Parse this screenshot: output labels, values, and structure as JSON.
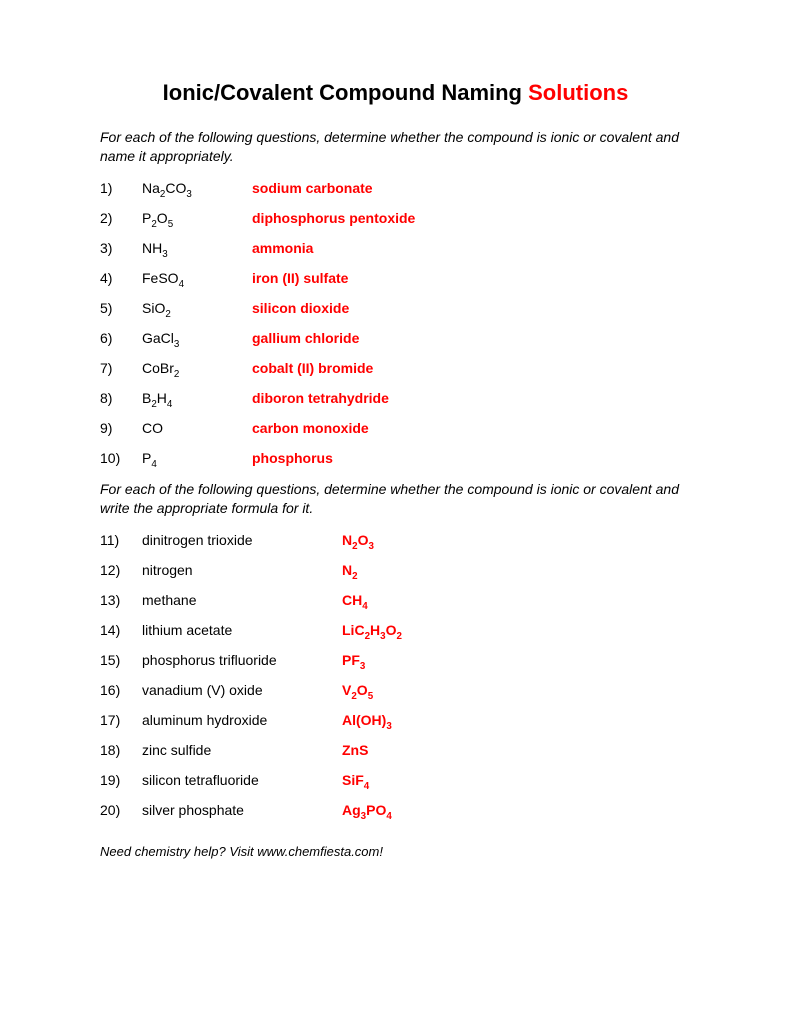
{
  "title_prefix": "Ionic/Covalent Compound Naming ",
  "title_solution_word": "Solutions",
  "instructions1": "For each of the following questions, determine whether the compound is ionic or covalent and name it appropriately.",
  "instructions2": "For each of the following questions, determine whether the compound is ionic or covalent and write the appropriate formula for it.",
  "section1": [
    {
      "n": "1)",
      "formula": "Na<sub>2</sub>CO<sub>3</sub>",
      "name": "sodium carbonate"
    },
    {
      "n": "2)",
      "formula": "P<sub>2</sub>O<sub>5</sub>",
      "name": "diphosphorus pentoxide"
    },
    {
      "n": "3)",
      "formula": "NH<sub>3</sub>",
      "name": "ammonia"
    },
    {
      "n": "4)",
      "formula": "FeSO<sub>4</sub>",
      "name": "iron (II) sulfate"
    },
    {
      "n": "5)",
      "formula": "SiO<sub>2</sub>",
      "name": "silicon dioxide"
    },
    {
      "n": "6)",
      "formula": "GaCl<sub>3</sub>",
      "name": "gallium chloride"
    },
    {
      "n": "7)",
      "formula": "CoBr<sub>2</sub>",
      "name": "cobalt (II) bromide"
    },
    {
      "n": "8)",
      "formula": "B<sub>2</sub>H<sub>4</sub>",
      "name": "diboron tetrahydride"
    },
    {
      "n": "9)",
      "formula": "CO",
      "name": "carbon monoxide"
    },
    {
      "n": "10)",
      "formula": "P<sub>4</sub>",
      "name": "phosphorus"
    }
  ],
  "section2": [
    {
      "n": "11)",
      "name": "dinitrogen trioxide",
      "formula": "N<sub>2</sub>O<sub>3</sub>"
    },
    {
      "n": "12)",
      "name": "nitrogen",
      "formula": "N<sub>2</sub>"
    },
    {
      "n": "13)",
      "name": "methane",
      "formula": "CH<sub>4</sub>"
    },
    {
      "n": "14)",
      "name": "lithium acetate",
      "formula": "LiC<sub>2</sub>H<sub>3</sub>O<sub>2</sub>"
    },
    {
      "n": "15)",
      "name": "phosphorus trifluoride",
      "formula": "PF<sub>3</sub>"
    },
    {
      "n": "16)",
      "name": "vanadium (V) oxide",
      "formula": "V<sub>2</sub>O<sub>5</sub>"
    },
    {
      "n": "17)",
      "name": "aluminum hydroxide",
      "formula": "Al(OH)<sub>3</sub>"
    },
    {
      "n": "18)",
      "name": "zinc sulfide",
      "formula": "ZnS"
    },
    {
      "n": "19)",
      "name": "silicon tetrafluoride",
      "formula": "SiF<sub>4</sub>"
    },
    {
      "n": "20)",
      "name": "silver phosphate",
      "formula": "Ag<sub>3</sub>PO<sub>4</sub>"
    }
  ],
  "footer": "Need chemistry help?  Visit www.chemfiesta.com!",
  "colors": {
    "answer": "#ff0000",
    "text": "#000000",
    "background": "#ffffff"
  },
  "fonts": {
    "title_size": 22,
    "body_size": 14,
    "footer_size": 13,
    "family": "Arial"
  }
}
